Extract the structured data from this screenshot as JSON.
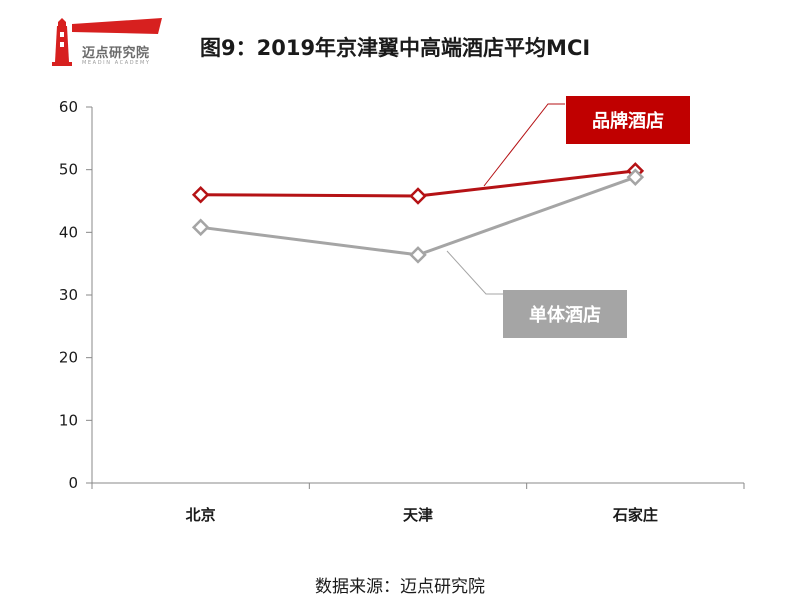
{
  "logo": {
    "name": "迈点研究院",
    "sub": "MEADIN ACADEMY",
    "icon": "lighthouse-icon",
    "color": "#d7201f"
  },
  "title": "图9：2019年京津翼中高端酒店平均MCI",
  "source": "数据来源：迈点研究院",
  "chart_data": {
    "type": "line",
    "categories": [
      "北京",
      "天津",
      "石家庄"
    ],
    "series": [
      {
        "name": "品牌酒店",
        "values": [
          46.0,
          45.8,
          49.8
        ],
        "color": "#b51215",
        "label_bg": "#c00000"
      },
      {
        "name": "单体酒店",
        "values": [
          40.8,
          36.4,
          48.8
        ],
        "color": "#a5a5a5",
        "label_bg": "#a5a5a5"
      }
    ],
    "ylim": [
      0,
      60
    ],
    "yticks": [
      0,
      10,
      20,
      30,
      40,
      50,
      60
    ],
    "grid": false,
    "legend": "callout-labels"
  }
}
